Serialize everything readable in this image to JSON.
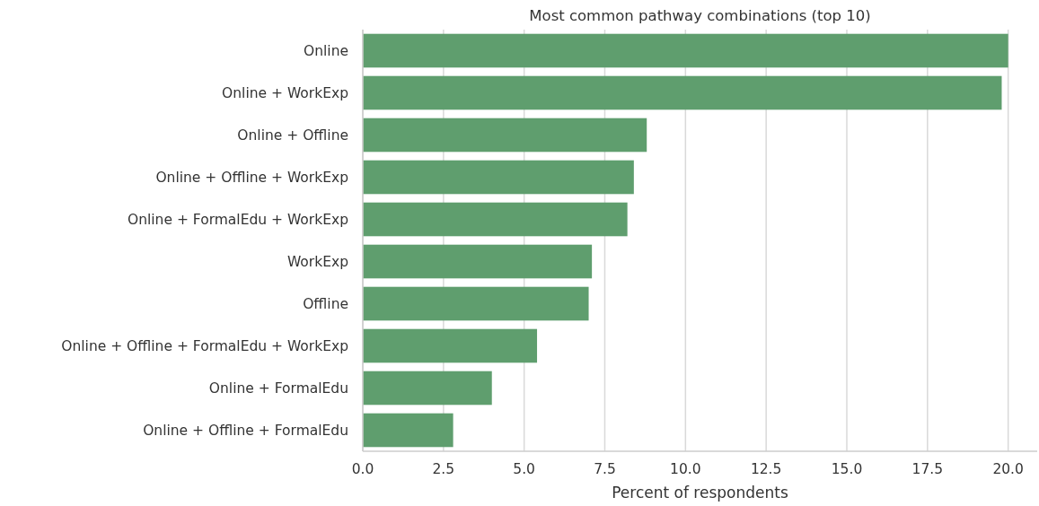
{
  "chart_data": {
    "type": "bar",
    "orientation": "horizontal",
    "title": "Most common pathway combinations (top 10)",
    "xlabel": "Percent of respondents",
    "categories": [
      "Online",
      "Online + WorkExp",
      "Online + Offline",
      "Online + Offline + WorkExp",
      "Online + FormalEdu + WorkExp",
      "WorkExp",
      "Offline",
      "Online + Offline + FormalEdu + WorkExp",
      "Online + FormalEdu",
      "Online + Offline + FormalEdu"
    ],
    "values": [
      20.0,
      19.8,
      8.8,
      8.4,
      8.2,
      7.1,
      7.0,
      5.4,
      4.0,
      2.8
    ],
    "color": "#5f9e6e",
    "xlim": [
      0,
      20.9
    ],
    "xticks": [
      {
        "value": 0,
        "label": "0.0"
      },
      {
        "value": 2.5,
        "label": "2.5"
      },
      {
        "value": 5,
        "label": "5.0"
      },
      {
        "value": 7.5,
        "label": "7.5"
      },
      {
        "value": 10,
        "label": "10.0"
      },
      {
        "value": 12.5,
        "label": "12.5"
      },
      {
        "value": 15,
        "label": "15.0"
      },
      {
        "value": 17.5,
        "label": "17.5"
      },
      {
        "value": 20,
        "label": "20.0"
      }
    ],
    "grid": "x"
  }
}
